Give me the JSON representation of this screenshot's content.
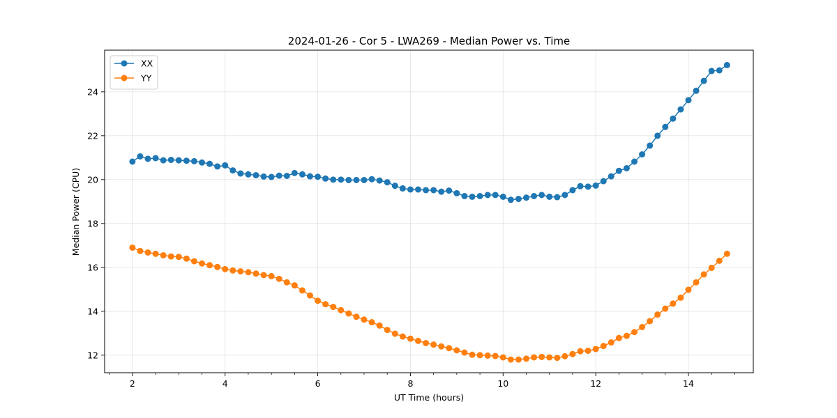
{
  "chart_data": {
    "type": "line",
    "title": "2024-01-26 - Cor 5 - LWA269 - Median Power vs. Time",
    "xlabel": "UT Time (hours)",
    "ylabel": "Median Power (CPU)",
    "xlim": [
      1.4,
      15.4
    ],
    "ylim": [
      11.2,
      25.9
    ],
    "xticks": [
      2,
      4,
      6,
      8,
      10,
      12,
      14
    ],
    "xtick_labels": [
      "2",
      "4",
      "6",
      "8",
      "10",
      "12",
      "14"
    ],
    "xminor_step": 0.5,
    "yticks": [
      12,
      14,
      16,
      18,
      20,
      22,
      24
    ],
    "ytick_labels": [
      "12",
      "14",
      "16",
      "18",
      "20",
      "22",
      "24"
    ],
    "grid": true,
    "legend_position": "top-left",
    "series": [
      {
        "name": "XX",
        "color": "#1f77b4",
        "marker": "circle",
        "x": [
          2.0,
          2.1667,
          2.3333,
          2.5,
          2.6667,
          2.8333,
          3.0,
          3.1667,
          3.3333,
          3.5,
          3.6667,
          3.8333,
          4.0,
          4.1667,
          4.3333,
          4.5,
          4.6667,
          4.8333,
          5.0,
          5.1667,
          5.3333,
          5.5,
          5.6667,
          5.8333,
          6.0,
          6.1667,
          6.3333,
          6.5,
          6.6667,
          6.8333,
          7.0,
          7.1667,
          7.3333,
          7.5,
          7.6667,
          7.8333,
          8.0,
          8.1667,
          8.3333,
          8.5,
          8.6667,
          8.8333,
          9.0,
          9.1667,
          9.3333,
          9.5,
          9.6667,
          9.8333,
          10.0,
          10.1667,
          10.3333,
          10.5,
          10.6667,
          10.8333,
          11.0,
          11.1667,
          11.3333,
          11.5,
          11.6667,
          11.8333,
          12.0,
          12.1667,
          12.3333,
          12.5,
          12.6667,
          12.8333,
          13.0,
          13.1667,
          13.3333,
          13.5,
          13.6667,
          13.8333,
          14.0,
          14.1667,
          14.3333,
          14.5,
          14.6667,
          14.8333
        ],
        "values": [
          20.82,
          21.06,
          20.95,
          20.98,
          20.88,
          20.9,
          20.88,
          20.86,
          20.84,
          20.78,
          20.72,
          20.6,
          20.65,
          20.42,
          20.28,
          20.24,
          20.2,
          20.14,
          20.12,
          20.18,
          20.17,
          20.3,
          20.24,
          20.15,
          20.13,
          20.05,
          20.0,
          20.0,
          19.98,
          19.98,
          19.98,
          20.02,
          19.96,
          19.88,
          19.72,
          19.6,
          19.55,
          19.55,
          19.52,
          19.52,
          19.45,
          19.5,
          19.38,
          19.25,
          19.22,
          19.25,
          19.3,
          19.3,
          19.22,
          19.08,
          19.12,
          19.18,
          19.25,
          19.3,
          19.22,
          19.2,
          19.3,
          19.52,
          19.7,
          19.68,
          19.73,
          19.93,
          20.15,
          20.4,
          20.52,
          20.82,
          21.15,
          21.55,
          22.0,
          22.4,
          22.78,
          23.2,
          23.62,
          24.05,
          24.5,
          24.95,
          24.98,
          25.22
        ]
      },
      {
        "name": "YY",
        "color": "#ff7f0e",
        "marker": "circle",
        "x": [
          2.0,
          2.1667,
          2.3333,
          2.5,
          2.6667,
          2.8333,
          3.0,
          3.1667,
          3.3333,
          3.5,
          3.6667,
          3.8333,
          4.0,
          4.1667,
          4.3333,
          4.5,
          4.6667,
          4.8333,
          5.0,
          5.1667,
          5.3333,
          5.5,
          5.6667,
          5.8333,
          6.0,
          6.1667,
          6.3333,
          6.5,
          6.6667,
          6.8333,
          7.0,
          7.1667,
          7.3333,
          7.5,
          7.6667,
          7.8333,
          8.0,
          8.1667,
          8.3333,
          8.5,
          8.6667,
          8.8333,
          9.0,
          9.1667,
          9.3333,
          9.5,
          9.6667,
          9.8333,
          10.0,
          10.1667,
          10.3333,
          10.5,
          10.6667,
          10.8333,
          11.0,
          11.1667,
          11.3333,
          11.5,
          11.6667,
          11.8333,
          12.0,
          12.1667,
          12.3333,
          12.5,
          12.6667,
          12.8333,
          13.0,
          13.1667,
          13.3333,
          13.5,
          13.6667,
          13.8333,
          14.0,
          14.1667,
          14.3333,
          14.5,
          14.6667,
          14.8333
        ],
        "values": [
          16.9,
          16.75,
          16.68,
          16.62,
          16.55,
          16.5,
          16.48,
          16.4,
          16.28,
          16.18,
          16.1,
          16.02,
          15.92,
          15.86,
          15.82,
          15.78,
          15.72,
          15.65,
          15.6,
          15.48,
          15.32,
          15.18,
          14.95,
          14.72,
          14.48,
          14.32,
          14.2,
          14.05,
          13.9,
          13.75,
          13.62,
          13.5,
          13.35,
          13.15,
          12.98,
          12.85,
          12.75,
          12.65,
          12.55,
          12.48,
          12.4,
          12.32,
          12.22,
          12.12,
          12.02,
          12.0,
          11.98,
          11.96,
          11.9,
          11.8,
          11.8,
          11.84,
          11.9,
          11.92,
          11.9,
          11.88,
          11.95,
          12.05,
          12.18,
          12.2,
          12.28,
          12.42,
          12.58,
          12.78,
          12.88,
          13.05,
          13.28,
          13.55,
          13.85,
          14.12,
          14.35,
          14.62,
          14.98,
          15.32,
          15.68,
          15.98,
          16.3,
          16.62
        ]
      }
    ]
  }
}
